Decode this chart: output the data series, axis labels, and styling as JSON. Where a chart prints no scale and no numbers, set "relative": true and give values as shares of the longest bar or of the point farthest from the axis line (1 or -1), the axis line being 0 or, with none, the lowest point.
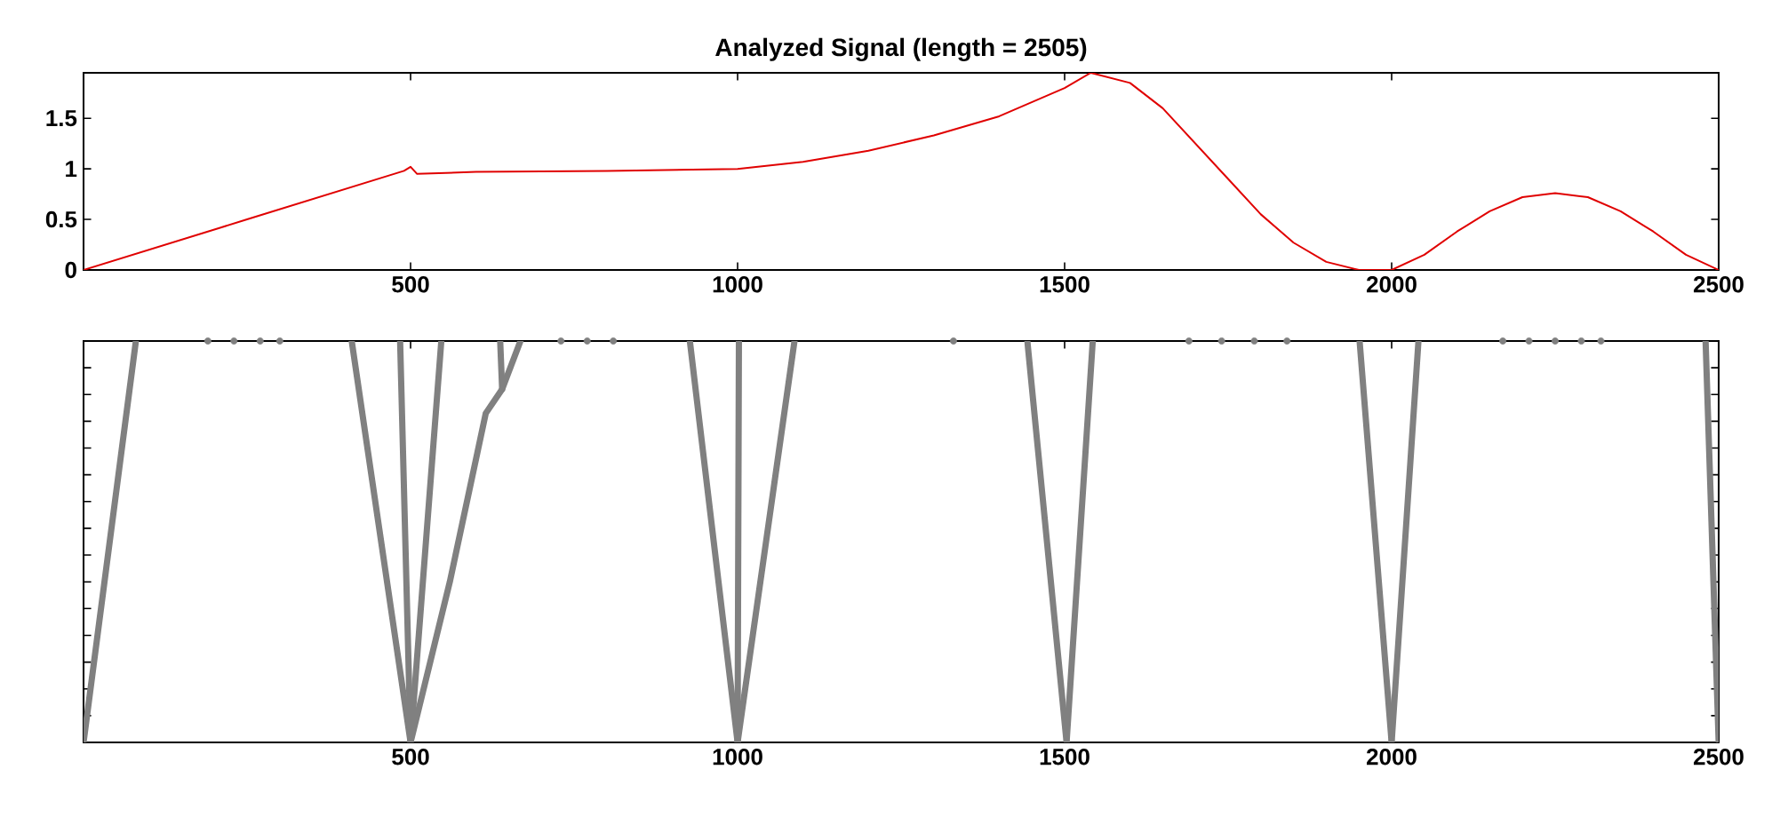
{
  "chart_data": [
    {
      "type": "line",
      "title": "Analyzed Signal  (length = 2505)",
      "xlim": [
        0,
        2500
      ],
      "xticks": [
        500,
        1000,
        1500,
        2000,
        2500
      ],
      "ylim": [
        0,
        1.95
      ],
      "yticks": [
        0,
        0.5,
        1,
        1.5
      ],
      "grid": false,
      "marker": "none",
      "line_style": "solid",
      "series": [
        {
          "color": "#e00000",
          "x": [
            0,
            250,
            490,
            500,
            510,
            600,
            800,
            1000,
            1100,
            1200,
            1300,
            1400,
            1500,
            1540,
            1600,
            1650,
            1700,
            1750,
            1800,
            1850,
            1900,
            1950,
            2000,
            2050,
            2100,
            2150,
            2200,
            2250,
            2300,
            2350,
            2400,
            2450,
            2500
          ],
          "values": [
            0,
            0.5,
            0.98,
            1.02,
            0.95,
            0.97,
            0.98,
            1.0,
            1.07,
            1.18,
            1.33,
            1.52,
            1.8,
            1.95,
            1.85,
            1.6,
            1.25,
            0.9,
            0.55,
            0.27,
            0.08,
            0,
            0,
            0.15,
            0.38,
            0.58,
            0.72,
            0.76,
            0.72,
            0.58,
            0.38,
            0.15,
            0
          ]
        }
      ]
    },
    {
      "type": "line",
      "relative": true,
      "xlim": [
        0,
        2500
      ],
      "xticks": [
        500,
        1000,
        1500,
        2000,
        2500
      ],
      "tick_labels": "x",
      "grid": false,
      "marker": "none",
      "line_style": "solid",
      "series": [
        {
          "color": "#808080",
          "x": [
            0,
            80
          ],
          "values": [
            0,
            1
          ]
        },
        {
          "color": "#808080",
          "x": [
            500,
            410
          ],
          "values": [
            0,
            1
          ]
        },
        {
          "color": "#808080",
          "x": [
            500,
            484
          ],
          "values": [
            0,
            1
          ]
        },
        {
          "color": "#808080",
          "x": [
            500,
            547
          ],
          "values": [
            0,
            1
          ]
        },
        {
          "color": "#808080",
          "x": [
            500,
            560,
            615,
            640,
            668
          ],
          "values": [
            0,
            0.4,
            0.82,
            0.88,
            1
          ]
        },
        {
          "color": "#808080",
          "x": [
            640,
            637
          ],
          "values": [
            0.88,
            1
          ]
        },
        {
          "color": "#808080",
          "x": [
            1000,
            927
          ],
          "values": [
            0,
            1
          ]
        },
        {
          "color": "#808080",
          "x": [
            1000,
            1002
          ],
          "values": [
            0,
            1
          ]
        },
        {
          "color": "#808080",
          "x": [
            1000,
            1087
          ],
          "values": [
            0,
            1
          ]
        },
        {
          "color": "#808080",
          "x": [
            1503,
            1443
          ],
          "values": [
            0,
            1
          ]
        },
        {
          "color": "#808080",
          "x": [
            1503,
            1543
          ],
          "values": [
            0,
            1
          ]
        },
        {
          "color": "#808080",
          "x": [
            2000,
            1951
          ],
          "values": [
            0,
            1
          ]
        },
        {
          "color": "#808080",
          "x": [
            2000,
            2041
          ],
          "values": [
            0,
            1
          ]
        },
        {
          "color": "#808080",
          "x": [
            2500,
            2480
          ],
          "values": [
            0,
            1
          ]
        },
        {
          "type": "scatter",
          "marker": "circle",
          "color": "#808080",
          "x": [
            190,
            230,
            270,
            300,
            730,
            770,
            810,
            1330,
            1690,
            1740,
            1790,
            1840,
            2170,
            2210,
            2250,
            2290,
            2320
          ],
          "values": [
            1,
            1,
            1,
            1,
            1,
            1,
            1,
            1,
            1,
            1,
            1,
            1,
            1,
            1,
            1,
            1,
            1
          ]
        }
      ]
    }
  ]
}
